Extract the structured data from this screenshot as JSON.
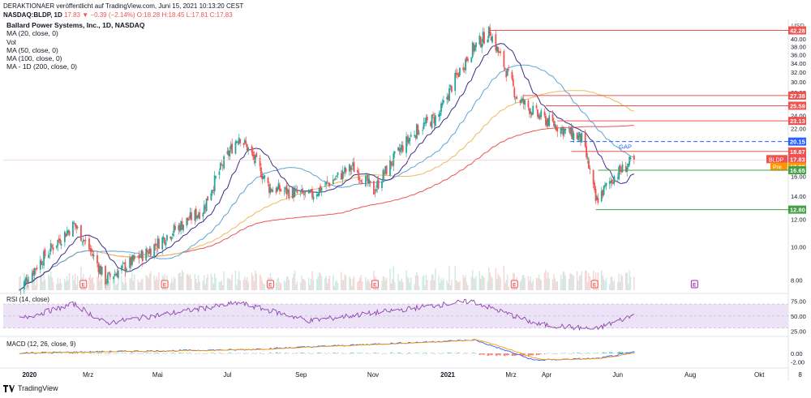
{
  "header": {
    "publisher_line": "DERAKTIONAER veröffentlicht auf TradingView.com, Juni 15, 2021 10:13:20 CEST",
    "symbol": "NASDAQ:BLDP, 1D",
    "last": "17.83",
    "change": "▼ −0.39 (−2.14%)",
    "ohlc": "O:18.28 H:18.45 L:17.81 C:17.83"
  },
  "legend": {
    "title": "Ballard Power Systems, Inc., 1D, NASDAQ",
    "items": [
      "MA (20, close, 0)",
      "Vol",
      "MA (50, close, 0)",
      "MA (100, close, 0)",
      "MA - 1D (200, close, 0)"
    ]
  },
  "footer": {
    "brand": "TradingView"
  },
  "colors": {
    "candle_up": "#26a69a",
    "candle_down": "#ef5350",
    "ma20": "#3f2a8c",
    "ma50": "#5aa5d6",
    "ma100": "#f0b85a",
    "ma200": "#ef5350",
    "rsi": "#8e44ad",
    "rsi_band": "#ede3f7",
    "macd": "#2962ff",
    "signal": "#ff9800",
    "level_red": "#ef5350",
    "level_green": "#43a047",
    "gap_blue": "#2962ff"
  },
  "chart_data": [
    {
      "type": "candlestick",
      "title": "Ballard Power Systems, Inc., 1D, NASDAQ",
      "currency": "USD",
      "y_scale": "log",
      "ylim": [
        7.4,
        45
      ],
      "x_ticks": [
        "2020",
        "Mrz",
        "Mai",
        "Jul",
        "Sep",
        "Nov",
        "2021",
        "Mrz",
        "Apr",
        "Jun",
        "Aug",
        "Okt",
        "8"
      ],
      "y_ticks": [
        "42.00",
        "40.00",
        "38.00",
        "36.00",
        "34.00",
        "32.00",
        "30.00",
        "28.00",
        "26.00",
        "24.00",
        "22.00",
        "20.00",
        "18.00",
        "16.00",
        "14.00",
        "12.00",
        "10.00",
        "8.00"
      ],
      "ohlc_keypoints": [
        {
          "date": "2020-01-02",
          "close": 7.5
        },
        {
          "date": "2020-02-18",
          "close": 11.6
        },
        {
          "date": "2020-03-16",
          "close": 8.0
        },
        {
          "date": "2020-04-20",
          "close": 9.6
        },
        {
          "date": "2020-06-08",
          "close": 12.8
        },
        {
          "date": "2020-07-09",
          "close": 21.0
        },
        {
          "date": "2020-08-04",
          "close": 14.8
        },
        {
          "date": "2020-09-08",
          "close": 14.0
        },
        {
          "date": "2020-10-15",
          "close": 17.0
        },
        {
          "date": "2020-11-02",
          "close": 14.5
        },
        {
          "date": "2020-12-07",
          "close": 21.5
        },
        {
          "date": "2020-12-28",
          "close": 24.0
        },
        {
          "date": "2021-01-25",
          "close": 37.0
        },
        {
          "date": "2021-02-10",
          "close": 42.0
        },
        {
          "date": "2021-02-17",
          "close": 36.5
        },
        {
          "date": "2021-03-05",
          "close": 27.0
        },
        {
          "date": "2021-03-23",
          "close": 24.0
        },
        {
          "date": "2021-04-12",
          "close": 22.0
        },
        {
          "date": "2021-04-30",
          "close": 20.5
        },
        {
          "date": "2021-05-12",
          "close": 13.5
        },
        {
          "date": "2021-05-28",
          "close": 16.0
        },
        {
          "date": "2021-06-14",
          "close": 17.83
        }
      ],
      "price_labels": [
        {
          "value": "42.28",
          "kind": "level"
        },
        {
          "value": "27.38",
          "kind": "level"
        },
        {
          "value": "25.59",
          "kind": "level"
        },
        {
          "value": "23.13",
          "kind": "level"
        },
        {
          "value": "20.15",
          "kind": "gap"
        },
        {
          "value": "18.87",
          "kind": "level"
        },
        {
          "value": "17.83",
          "kind": "last",
          "tag": "BLDP"
        },
        {
          "value": "17.80",
          "kind": "pre",
          "tag": "Pre"
        },
        {
          "value": "16.65",
          "kind": "support"
        },
        {
          "value": "12.80",
          "kind": "support"
        }
      ],
      "annotations": [
        "GAP"
      ],
      "earnings_markers": [
        "2020-02-26",
        "2020-05-06",
        "2020-08-05",
        "2020-11-03",
        "2021-03-03",
        "2021-05-11",
        "2021-08-05"
      ],
      "marker_label": "E"
    },
    {
      "type": "line",
      "title": "RSI (14, close)",
      "ylim": [
        20,
        85
      ],
      "y_ticks": [
        "75.00",
        "50.00",
        "25.00"
      ],
      "band": [
        30,
        70
      ],
      "keypoints": [
        {
          "date": "2020-01-02",
          "value": 45
        },
        {
          "date": "2020-02-18",
          "value": 70
        },
        {
          "date": "2020-03-16",
          "value": 38
        },
        {
          "date": "2020-07-09",
          "value": 72
        },
        {
          "date": "2020-09-08",
          "value": 42
        },
        {
          "date": "2021-01-25",
          "value": 75
        },
        {
          "date": "2021-03-23",
          "value": 36
        },
        {
          "date": "2021-05-12",
          "value": 28
        },
        {
          "date": "2021-06-14",
          "value": 52
        }
      ]
    },
    {
      "type": "line",
      "title": "MACD (12, 26, close, 9)",
      "y_ticks": [
        "0.00",
        "-2.00"
      ],
      "keypoints": [
        {
          "date": "2020-01-02",
          "value": 0.1
        },
        {
          "date": "2020-07-15",
          "value": 0.9
        },
        {
          "date": "2021-01-28",
          "value": 3.2
        },
        {
          "date": "2021-03-20",
          "value": -1.6
        },
        {
          "date": "2021-05-14",
          "value": -1.2
        },
        {
          "date": "2021-06-14",
          "value": 0.3
        }
      ]
    }
  ]
}
